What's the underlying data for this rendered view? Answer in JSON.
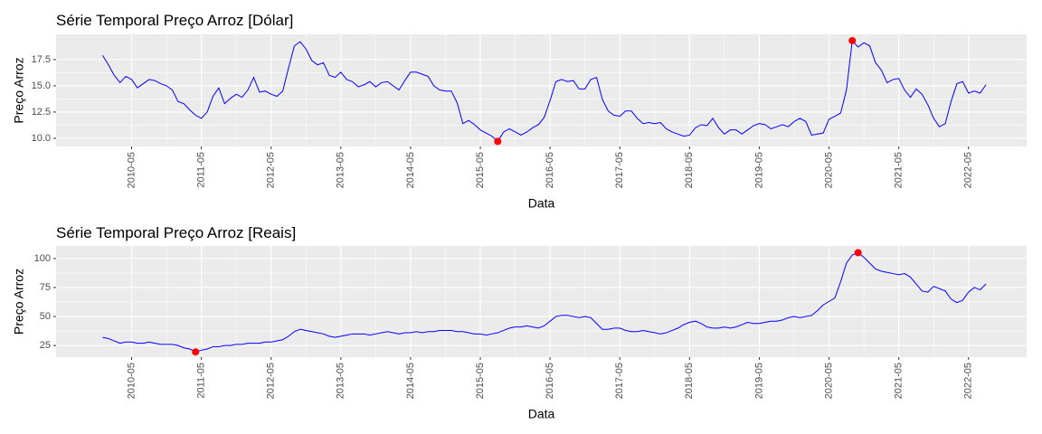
{
  "chart_data": [
    {
      "type": "line",
      "title": "Série Temporal Preço Arroz [Dólar]",
      "x_label": "Data",
      "y_label": "Preço Arroz",
      "color": "#0000ff",
      "highlight_color": "#ff0000",
      "grid": true,
      "x": [
        "2009-12",
        "2010-01",
        "2010-02",
        "2010-03",
        "2010-04",
        "2010-05",
        "2010-06",
        "2010-07",
        "2010-08",
        "2010-09",
        "2010-10",
        "2010-11",
        "2010-12",
        "2011-01",
        "2011-02",
        "2011-03",
        "2011-04",
        "2011-05",
        "2011-06",
        "2011-07",
        "2011-08",
        "2011-09",
        "2011-10",
        "2011-11",
        "2011-12",
        "2012-01",
        "2012-02",
        "2012-03",
        "2012-04",
        "2012-05",
        "2012-06",
        "2012-07",
        "2012-08",
        "2012-09",
        "2012-10",
        "2012-11",
        "2012-12",
        "2013-01",
        "2013-02",
        "2013-03",
        "2013-04",
        "2013-05",
        "2013-06",
        "2013-07",
        "2013-08",
        "2013-09",
        "2013-10",
        "2013-11",
        "2013-12",
        "2014-01",
        "2014-02",
        "2014-03",
        "2014-04",
        "2014-05",
        "2014-06",
        "2014-07",
        "2014-08",
        "2014-09",
        "2014-10",
        "2014-11",
        "2014-12",
        "2015-01",
        "2015-02",
        "2015-03",
        "2015-04",
        "2015-05",
        "2015-06",
        "2015-07",
        "2015-08",
        "2015-09",
        "2015-10",
        "2015-11",
        "2015-12",
        "2016-01",
        "2016-02",
        "2016-03",
        "2016-04",
        "2016-05",
        "2016-06",
        "2016-07",
        "2016-08",
        "2016-09",
        "2016-10",
        "2016-11",
        "2016-12",
        "2017-01",
        "2017-02",
        "2017-03",
        "2017-04",
        "2017-05",
        "2017-06",
        "2017-07",
        "2017-08",
        "2017-09",
        "2017-10",
        "2017-11",
        "2017-12",
        "2018-01",
        "2018-02",
        "2018-03",
        "2018-04",
        "2018-05",
        "2018-06",
        "2018-07",
        "2018-08",
        "2018-09",
        "2018-10",
        "2018-11",
        "2018-12",
        "2019-01",
        "2019-02",
        "2019-03",
        "2019-04",
        "2019-05",
        "2019-06",
        "2019-07",
        "2019-08",
        "2019-09",
        "2019-10",
        "2019-11",
        "2019-12",
        "2020-01",
        "2020-02",
        "2020-03",
        "2020-04",
        "2020-05",
        "2020-06",
        "2020-07",
        "2020-08",
        "2020-09",
        "2020-10",
        "2020-11",
        "2020-12",
        "2021-01",
        "2021-02",
        "2021-03",
        "2021-04",
        "2021-05",
        "2021-06",
        "2021-07",
        "2021-08",
        "2021-09",
        "2021-10",
        "2021-11",
        "2021-12",
        "2022-01",
        "2022-02",
        "2022-03",
        "2022-04",
        "2022-05",
        "2022-06",
        "2022-07",
        "2022-08"
      ],
      "values": [
        17.9,
        17.0,
        16.0,
        15.3,
        15.9,
        15.6,
        14.8,
        15.2,
        15.6,
        15.5,
        15.2,
        15.0,
        14.6,
        13.5,
        13.3,
        12.7,
        12.2,
        11.9,
        12.5,
        14.0,
        14.8,
        13.3,
        13.8,
        14.2,
        13.9,
        14.6,
        15.8,
        14.4,
        14.5,
        14.2,
        14.0,
        14.5,
        16.7,
        18.8,
        19.2,
        18.5,
        17.4,
        17.0,
        17.2,
        16.0,
        15.8,
        16.3,
        15.6,
        15.4,
        14.9,
        15.1,
        15.4,
        14.9,
        15.3,
        15.4,
        15.0,
        14.6,
        15.5,
        16.3,
        16.3,
        16.1,
        15.9,
        15.0,
        14.6,
        14.5,
        14.5,
        13.4,
        11.4,
        11.7,
        11.3,
        10.8,
        10.5,
        10.2,
        9.7,
        10.6,
        10.9,
        10.6,
        10.3,
        10.6,
        11.0,
        11.3,
        12.0,
        13.6,
        15.4,
        15.6,
        15.4,
        15.5,
        14.7,
        14.7,
        15.6,
        15.8,
        13.7,
        12.6,
        12.2,
        12.1,
        12.6,
        12.6,
        11.9,
        11.4,
        11.5,
        11.4,
        11.5,
        10.9,
        10.6,
        10.4,
        10.2,
        10.3,
        11.0,
        11.3,
        11.2,
        11.9,
        11.0,
        10.4,
        10.8,
        10.8,
        10.4,
        10.8,
        11.2,
        11.4,
        11.3,
        10.9,
        11.1,
        11.3,
        11.1,
        11.6,
        11.9,
        11.6,
        10.3,
        10.4,
        10.5,
        11.8,
        12.1,
        12.4,
        14.6,
        19.3,
        18.7,
        19.1,
        18.8,
        17.2,
        16.5,
        15.3,
        15.6,
        15.7,
        14.6,
        13.9,
        14.7,
        14.2,
        13.2,
        11.9,
        11.1,
        11.4,
        13.5,
        15.2,
        15.4,
        14.3,
        14.5,
        14.3,
        15.1
      ],
      "xlim": [
        "2009-04",
        "2023-03"
      ],
      "xticks": [
        "2010-05",
        "2011-05",
        "2012-05",
        "2013-05",
        "2014-05",
        "2015-05",
        "2016-05",
        "2017-05",
        "2018-05",
        "2019-05",
        "2020-05",
        "2021-05",
        "2022-05"
      ],
      "ylim": [
        9.22,
        19.9
      ],
      "yticks": [
        {
          "value": 10,
          "label": "10.0"
        },
        12.5,
        {
          "value": 15,
          "label": "15.0"
        },
        17.5
      ]
    },
    {
      "type": "line",
      "title": "Série Temporal Preço Arroz [Reais]",
      "x_label": "Data",
      "y_label": "Preço Arroz",
      "color": "#0000ff",
      "highlight_color": "#ff0000",
      "grid": true,
      "x": [
        "2009-12",
        "2010-01",
        "2010-02",
        "2010-03",
        "2010-04",
        "2010-05",
        "2010-06",
        "2010-07",
        "2010-08",
        "2010-09",
        "2010-10",
        "2010-11",
        "2010-12",
        "2011-01",
        "2011-02",
        "2011-03",
        "2011-04",
        "2011-05",
        "2011-06",
        "2011-07",
        "2011-08",
        "2011-09",
        "2011-10",
        "2011-11",
        "2011-12",
        "2012-01",
        "2012-02",
        "2012-03",
        "2012-04",
        "2012-05",
        "2012-06",
        "2012-07",
        "2012-08",
        "2012-09",
        "2012-10",
        "2012-11",
        "2012-12",
        "2013-01",
        "2013-02",
        "2013-03",
        "2013-04",
        "2013-05",
        "2013-06",
        "2013-07",
        "2013-08",
        "2013-09",
        "2013-10",
        "2013-11",
        "2013-12",
        "2014-01",
        "2014-02",
        "2014-03",
        "2014-04",
        "2014-05",
        "2014-06",
        "2014-07",
        "2014-08",
        "2014-09",
        "2014-10",
        "2014-11",
        "2014-12",
        "2015-01",
        "2015-02",
        "2015-03",
        "2015-04",
        "2015-05",
        "2015-06",
        "2015-07",
        "2015-08",
        "2015-09",
        "2015-10",
        "2015-11",
        "2015-12",
        "2016-01",
        "2016-02",
        "2016-03",
        "2016-04",
        "2016-05",
        "2016-06",
        "2016-07",
        "2016-08",
        "2016-09",
        "2016-10",
        "2016-11",
        "2016-12",
        "2017-01",
        "2017-02",
        "2017-03",
        "2017-04",
        "2017-05",
        "2017-06",
        "2017-07",
        "2017-08",
        "2017-09",
        "2017-10",
        "2017-11",
        "2017-12",
        "2018-01",
        "2018-02",
        "2018-03",
        "2018-04",
        "2018-05",
        "2018-06",
        "2018-07",
        "2018-08",
        "2018-09",
        "2018-10",
        "2018-11",
        "2018-12",
        "2019-01",
        "2019-02",
        "2019-03",
        "2019-04",
        "2019-05",
        "2019-06",
        "2019-07",
        "2019-08",
        "2019-09",
        "2019-10",
        "2019-11",
        "2019-12",
        "2020-01",
        "2020-02",
        "2020-03",
        "2020-04",
        "2020-05",
        "2020-06",
        "2020-07",
        "2020-08",
        "2020-09",
        "2020-10",
        "2020-11",
        "2020-12",
        "2021-01",
        "2021-02",
        "2021-03",
        "2021-04",
        "2021-05",
        "2021-06",
        "2021-07",
        "2021-08",
        "2021-09",
        "2021-10",
        "2021-11",
        "2021-12",
        "2022-01",
        "2022-02",
        "2022-03",
        "2022-04",
        "2022-05",
        "2022-06",
        "2022-07",
        "2022-08"
      ],
      "values": [
        32,
        31,
        29,
        27,
        28,
        28,
        27,
        27,
        28,
        27,
        26,
        26,
        26,
        25,
        23,
        22,
        19.5,
        21,
        22,
        24,
        24,
        25,
        25,
        26,
        26,
        27,
        27,
        27,
        28,
        28,
        29,
        30,
        33,
        37,
        39,
        38,
        37,
        36,
        35,
        33,
        32,
        33,
        34,
        35,
        35,
        35,
        34,
        35,
        36,
        37,
        36,
        35,
        36,
        36,
        37,
        36,
        37,
        37,
        38,
        38,
        38,
        37,
        37,
        36,
        35,
        35,
        34,
        35,
        36,
        38,
        40,
        41,
        41,
        42,
        41,
        40,
        42,
        46,
        50,
        51,
        51,
        50,
        49,
        50,
        49,
        44,
        39,
        39,
        40,
        40,
        38,
        37,
        37,
        38,
        37,
        36,
        35,
        36,
        38,
        40,
        43,
        45,
        46,
        44,
        41,
        40,
        40,
        41,
        40,
        41,
        43,
        45,
        44,
        44,
        45,
        46,
        46,
        47,
        49,
        50,
        49,
        50,
        51,
        55,
        60,
        63,
        66,
        80,
        96,
        103,
        105,
        101,
        96,
        91,
        89,
        88,
        87,
        86,
        87,
        84,
        78,
        72,
        71,
        76,
        74,
        72,
        65,
        62,
        64,
        71,
        75,
        73,
        78
      ],
      "xlim": [
        "2009-04",
        "2023-03"
      ],
      "xticks": [
        "2010-05",
        "2011-05",
        "2012-05",
        "2013-05",
        "2014-05",
        "2015-05",
        "2016-05",
        "2017-05",
        "2018-05",
        "2019-05",
        "2020-05",
        "2021-05",
        "2022-05"
      ],
      "ylim": [
        15,
        110.8
      ],
      "yticks": [
        25,
        50,
        75,
        100
      ]
    }
  ]
}
